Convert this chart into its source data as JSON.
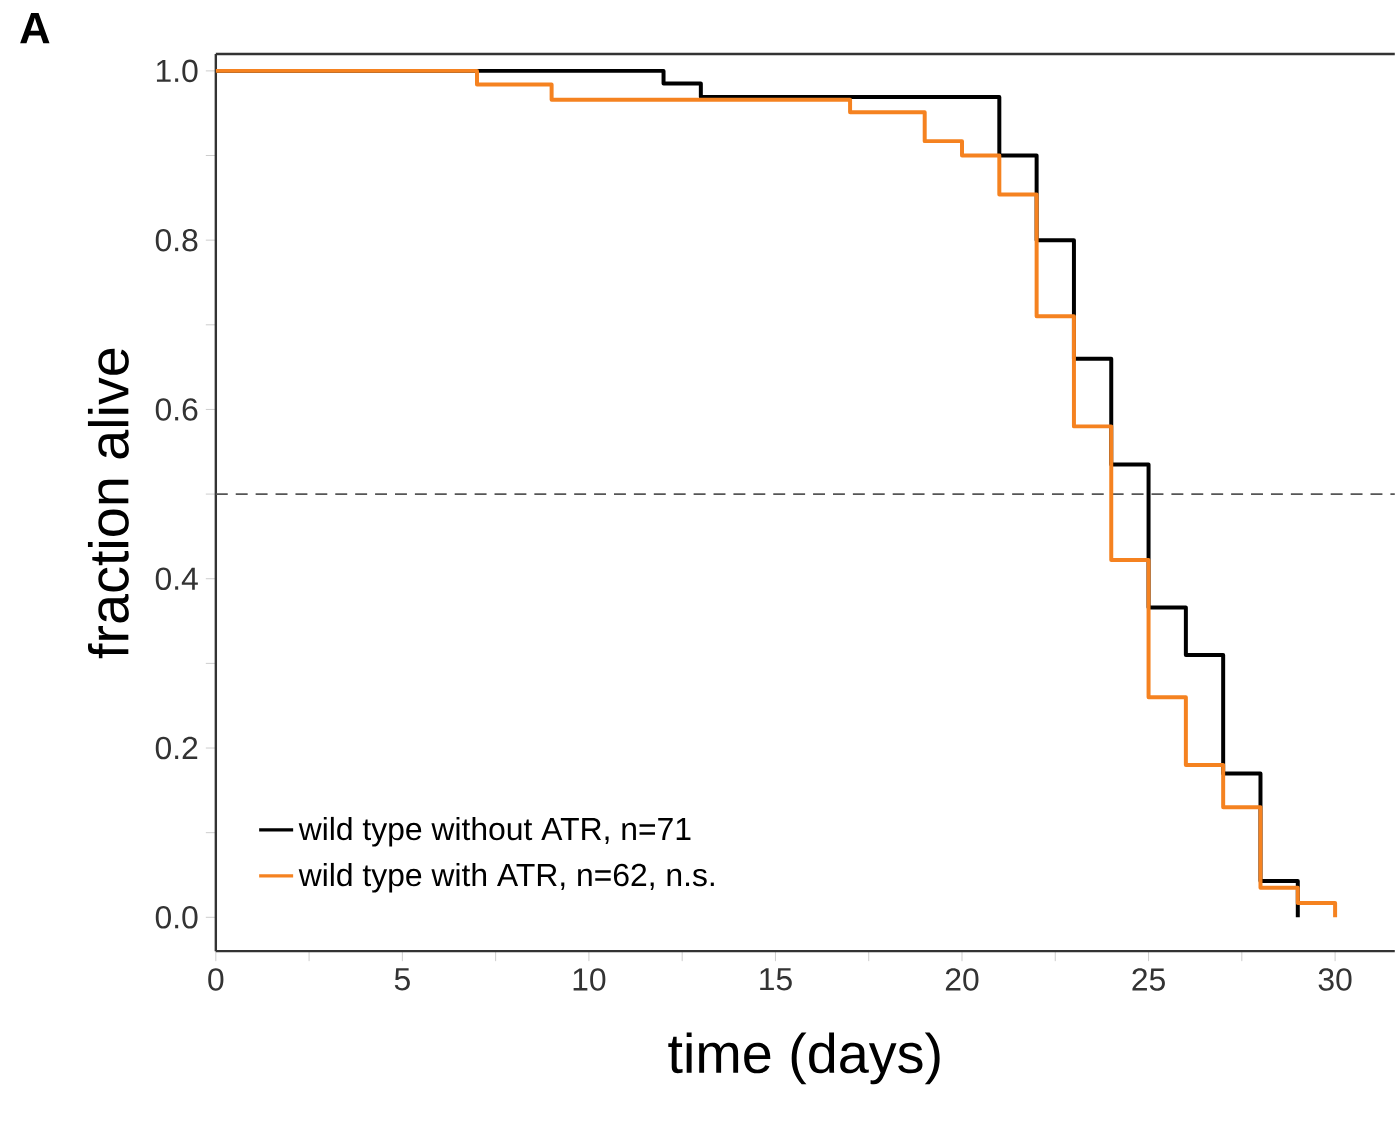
{
  "chart_data": {
    "type": "step",
    "xlabel": "time (days)",
    "ylabel": "fraction alive",
    "annotations": [
      "A"
    ],
    "series": [
      {
        "name": "wild type without ATR, n=71",
        "color": "#000000",
        "x": [
          0,
          12,
          13,
          21,
          22,
          23,
          24,
          25,
          26,
          27,
          28,
          29
        ],
        "values": [
          1.0,
          0.985,
          0.969,
          0.9,
          0.8,
          0.66,
          0.535,
          0.366,
          0.31,
          0.17,
          0.043,
          0
        ]
      },
      {
        "name": "wild type with ATR, n=62, n.s.",
        "color": "#f58220",
        "x": [
          0,
          7,
          9,
          17,
          19,
          20,
          21,
          22,
          23,
          24,
          25,
          26,
          27,
          28,
          29,
          30
        ],
        "values": [
          1.0,
          0.984,
          0.966,
          0.951,
          0.917,
          0.9,
          0.854,
          0.71,
          0.58,
          0.422,
          0.26,
          0.18,
          0.13,
          0.035,
          0.017,
          0
        ]
      }
    ],
    "xlim": [
      0,
      31.6
    ],
    "ylim": [
      -0.04,
      1.02
    ],
    "xticks": [
      0,
      {
        "value": 2.5,
        "label": null
      },
      5,
      {
        "value": 7.5,
        "label": null
      },
      10,
      {
        "value": 12.5,
        "label": null
      },
      15,
      {
        "value": 17.5,
        "label": null
      },
      20,
      {
        "value": 22.5,
        "label": null
      },
      25,
      {
        "value": 27.5,
        "label": null
      },
      30
    ],
    "yticks": [
      "0.0",
      {
        "value": 0.1,
        "label": null
      },
      {
        "value": 0.2,
        "label": "0.2"
      },
      {
        "value": 0.3,
        "label": null
      },
      {
        "value": 0.4,
        "label": "0.4"
      },
      {
        "value": 0.5,
        "label": null
      },
      {
        "value": 0.6,
        "label": "0.6"
      },
      {
        "value": 0.7,
        "label": null
      },
      {
        "value": 0.8,
        "label": "0.8"
      },
      {
        "value": 0.9,
        "label": null
      },
      {
        "value": 1.0,
        "label": "1.0"
      }
    ],
    "ref_lines": [
      {
        "axis": "y",
        "value": 0.5,
        "color": "#555555",
        "line_style": "dashed"
      }
    ],
    "legend": "bottom left",
    "grid": false,
    "marker": "none",
    "line_style": "solid"
  }
}
